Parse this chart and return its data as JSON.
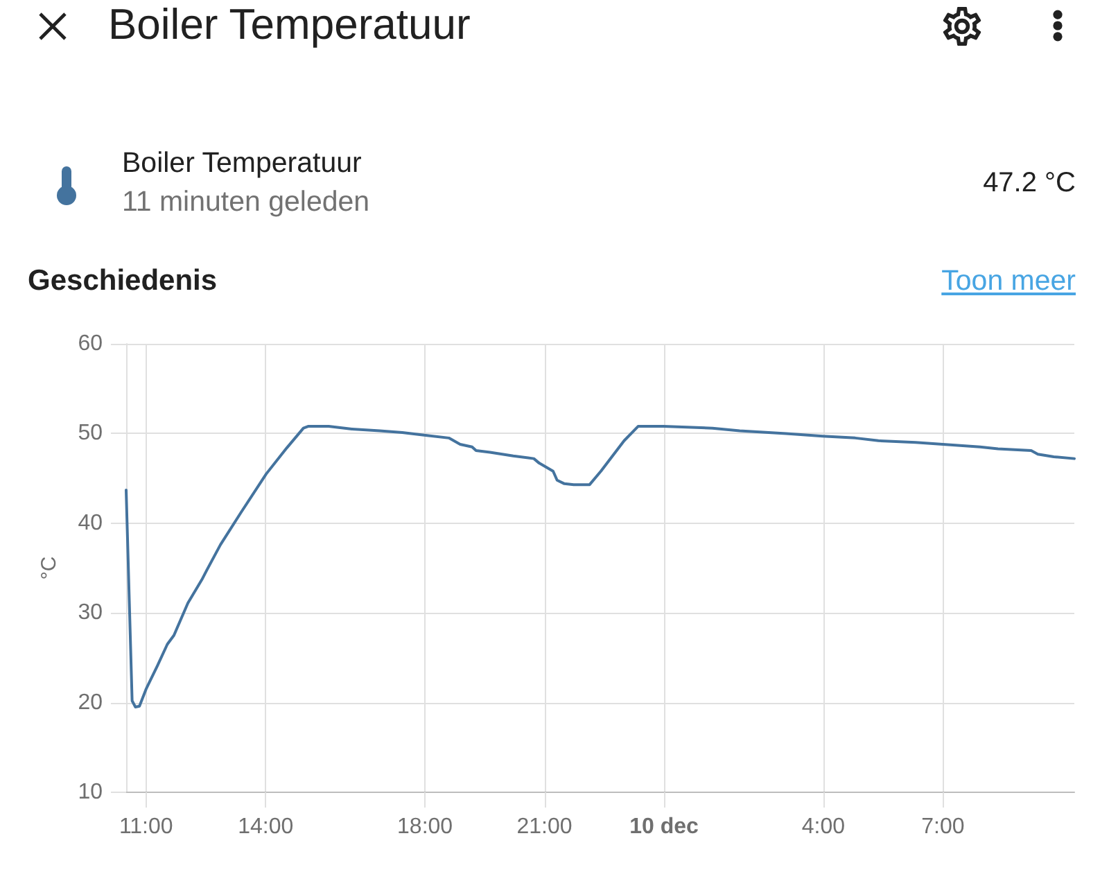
{
  "chart_data": {
    "type": "line",
    "title": "Boiler Temperatuur",
    "subtitle": "Geschiedenis",
    "ylabel": "°C",
    "annotations": [
      "Boiler Temperatuur",
      "11 minuten geleden",
      "47.2 °C",
      "Toon meer"
    ],
    "x": [
      "--12-09T10:30",
      "--12-09T10:39",
      "--12-09T10:44",
      "--12-09T10:50",
      "--12-09T11:00",
      "--12-09T11:17",
      "--12-09T11:32",
      "--12-09T11:42",
      "--12-09T12:03",
      "--12-09T12:24",
      "--12-09T12:31",
      "--12-09T12:52",
      "--12-09T13:23",
      "--12-09T14:01",
      "--12-09T14:32",
      "--12-09T14:57",
      "--12-09T15:04",
      "--12-09T15:35",
      "--12-09T16:10",
      "--12-09T16:52",
      "--12-09T17:26",
      "--12-09T18:01",
      "--12-09T18:36",
      "--12-09T18:53",
      "--12-09T19:11",
      "--12-09T19:17",
      "--12-09T19:38",
      "--12-09T20:13",
      "--12-09T20:44",
      "--12-09T20:52",
      "--12-09T21:13",
      "--12-09T21:19",
      "--12-09T21:30",
      "--12-09T21:44",
      "--12-09T22:08",
      "--12-09T22:25",
      "--12-09T23:00",
      "--12-09T23:21",
      "--12-09T23:59",
      "--12-10T01:13",
      "--12-10T01:54",
      "--12-10T03:04",
      "--12-10T03:59",
      "--12-10T04:48",
      "--12-10T05:23",
      "--12-10T06:19",
      "--12-10T07:00",
      "--12-10T07:56",
      "--12-10T08:23",
      "--12-10T09:13",
      "--12-10T09:23",
      "--12-10T09:47",
      "--12-10T10:18"
    ],
    "series": [
      {
        "color": "#44739e",
        "values": [
          43.7,
          20.2,
          19.5,
          19.6,
          21.5,
          24.1,
          26.5,
          27.5,
          31.1,
          33.7,
          34.7,
          37.6,
          41.2,
          45.5,
          48.4,
          50.6,
          50.8,
          50.8,
          50.5,
          50.3,
          50.1,
          49.8,
          49.5,
          48.8,
          48.5,
          48.1,
          47.9,
          47.5,
          47.2,
          46.7,
          45.8,
          44.8,
          44.4,
          44.3,
          44.3,
          45.8,
          49.2,
          50.8,
          50.8,
          50.6,
          50.3,
          50.0,
          49.7,
          49.5,
          49.2,
          49.0,
          48.8,
          48.5,
          48.3,
          48.1,
          47.7,
          47.4,
          47.2
        ]
      }
    ],
    "xlim": [
      "--12-09T10:30",
      "--12-10T10:18"
    ],
    "xticks": [
      {
        "value": "--12-09T11:00",
        "label": "11:00"
      },
      {
        "value": "--12-09T14:00",
        "label": "14:00"
      },
      {
        "value": "--12-09T18:00",
        "label": "18:00"
      },
      {
        "value": "--12-09T21:00",
        "label": "21:00"
      },
      {
        "value": "--12-10",
        "label": "10 dec"
      },
      {
        "value": "--12-10T04:00",
        "label": "4:00"
      },
      {
        "value": "--12-10T07:00",
        "label": "7:00"
      }
    ],
    "ylim": [
      10,
      60
    ],
    "yticks": [
      10,
      20,
      30,
      40,
      50,
      60
    ],
    "grid": true,
    "marker": "none"
  }
}
